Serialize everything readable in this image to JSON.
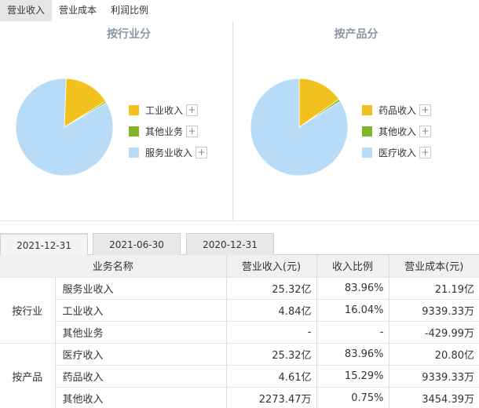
{
  "top_tabs": [
    {
      "label": "营业收入",
      "active": true
    },
    {
      "label": "营业成本",
      "active": false
    },
    {
      "label": "利润比例",
      "active": false
    }
  ],
  "chart_data": [
    {
      "type": "pie",
      "title": "按行业分",
      "categories": [
        "工业收入",
        "其他业务",
        "服务业收入"
      ],
      "values": [
        16.04,
        0.0,
        83.96
      ],
      "colors": [
        "#f3c11e",
        "#7fb526",
        "#b8dcf7"
      ]
    },
    {
      "type": "pie",
      "title": "按产品分",
      "categories": [
        "药品收入",
        "其他收入",
        "医疗收入"
      ],
      "values": [
        15.29,
        0.75,
        83.96
      ],
      "colors": [
        "#f3c11e",
        "#7fb526",
        "#b8dcf7"
      ]
    }
  ],
  "legend_plus": "+",
  "date_tabs": [
    {
      "label": "2021-12-31",
      "active": true
    },
    {
      "label": "2021-06-30",
      "active": false
    },
    {
      "label": "2020-12-31",
      "active": false
    }
  ],
  "table": {
    "headers": [
      "业务名称",
      "营业收入(元)",
      "收入比例",
      "营业成本(元)"
    ],
    "groups": [
      {
        "label": "按行业",
        "rows": [
          {
            "name": "服务业收入",
            "revenue": "25.32亿",
            "ratio": "83.96%",
            "cost": "21.19亿"
          },
          {
            "name": "工业收入",
            "revenue": "4.84亿",
            "ratio": "16.04%",
            "cost": "9339.33万"
          },
          {
            "name": "其他业务",
            "revenue": "-",
            "ratio": "-",
            "cost": "-429.99万"
          }
        ]
      },
      {
        "label": "按产品",
        "rows": [
          {
            "name": "医疗收入",
            "revenue": "25.32亿",
            "ratio": "83.96%",
            "cost": "20.80亿"
          },
          {
            "name": "药品收入",
            "revenue": "4.61亿",
            "ratio": "15.29%",
            "cost": "9339.33万"
          },
          {
            "name": "其他收入",
            "revenue": "2273.47万",
            "ratio": "0.75%",
            "cost": "3454.39万"
          }
        ]
      }
    ]
  }
}
